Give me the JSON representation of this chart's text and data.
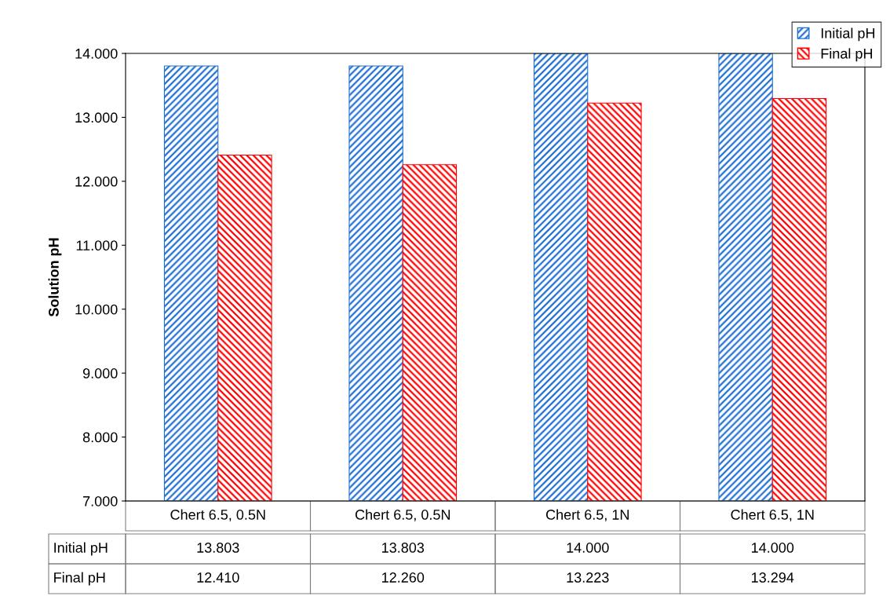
{
  "chart_data": {
    "type": "bar",
    "ylabel": "Solution pH",
    "categories": [
      "Chert 6.5, 0.5N",
      "Chert 6.5, 0.5N",
      "Chert 6.5, 1N",
      "Chert 6.5, 1N"
    ],
    "series": [
      {
        "name": "Initial pH",
        "color": "#1f6fd0",
        "values": [
          13.803,
          13.803,
          14.0,
          14.0
        ],
        "value_labels": [
          "13.803",
          "13.803",
          "14.000",
          "14.000"
        ]
      },
      {
        "name": "Final pH",
        "color": "#ff0000",
        "values": [
          12.41,
          12.26,
          13.223,
          13.294
        ],
        "value_labels": [
          "12.410",
          "12.260",
          "13.223",
          "13.294"
        ]
      }
    ],
    "ylim": [
      7,
      14
    ],
    "yticks": [
      {
        "value": 7,
        "label": "7.000"
      },
      {
        "value": 8,
        "label": "8.000"
      },
      {
        "value": 9,
        "label": "9.000"
      },
      {
        "value": 10,
        "label": "10.000"
      },
      {
        "value": 11,
        "label": "11.000"
      },
      {
        "value": 12,
        "label": "12.000"
      },
      {
        "value": 13,
        "label": "13.000"
      },
      {
        "value": 14,
        "label": "14.000"
      }
    ],
    "grid": false,
    "legend": "top right"
  }
}
